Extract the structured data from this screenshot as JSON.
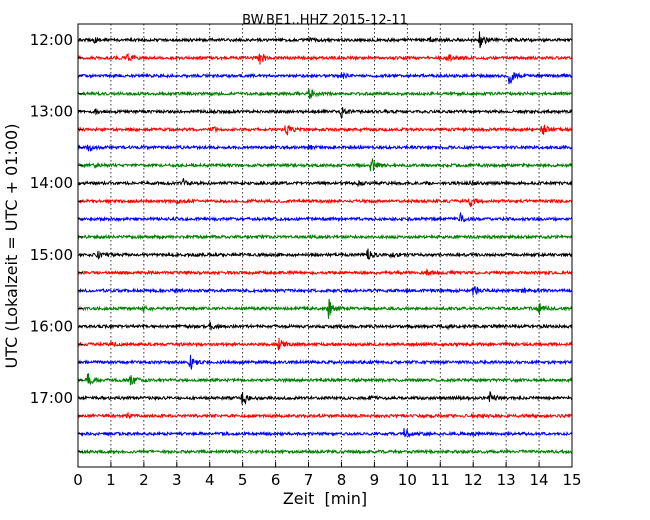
{
  "chart_data": {
    "type": "line",
    "title": "BW.BE1..HHZ 2015-12-11",
    "xlabel": "Zeit  [min]",
    "ylabel": "UTC (Lokalzeit = UTC + 01:00)",
    "xlim": [
      0,
      15
    ],
    "x_ticks": [
      "0",
      "1",
      "2",
      "3",
      "4",
      "5",
      "6",
      "7",
      "8",
      "9",
      "10",
      "11",
      "12",
      "13",
      "14",
      "15"
    ],
    "y_ticks": [
      "12:00",
      "13:00",
      "14:00",
      "15:00",
      "16:00",
      "17:00"
    ],
    "grid": "vertical dotted lines at each minute",
    "color_cycle": [
      "#000000",
      "#ff0000",
      "#0000ff",
      "#008000"
    ],
    "traces": [
      {
        "start": "12:00",
        "events": [
          [
            12.2,
            9
          ],
          [
            0.5,
            2
          ],
          [
            7.0,
            1.5
          ],
          [
            10.7,
            2
          ],
          [
            13.2,
            2
          ]
        ]
      },
      {
        "start": "12:15",
        "events": [
          [
            5.5,
            10
          ],
          [
            1.5,
            3
          ],
          [
            11.2,
            4
          ],
          [
            11.6,
            2
          ]
        ]
      },
      {
        "start": "12:30",
        "events": [
          [
            13.1,
            10
          ],
          [
            8.0,
            3
          ]
        ]
      },
      {
        "start": "12:45",
        "events": [
          [
            7.0,
            6
          ]
        ]
      },
      {
        "start": "13:00",
        "events": [
          [
            8.0,
            7
          ],
          [
            0.5,
            2
          ]
        ]
      },
      {
        "start": "13:15",
        "events": [
          [
            6.3,
            8
          ],
          [
            14.1,
            8
          ],
          [
            4.1,
            3
          ]
        ]
      },
      {
        "start": "13:30",
        "events": [
          [
            0.3,
            4
          ],
          [
            7.0,
            2
          ]
        ]
      },
      {
        "start": "13:45",
        "events": [
          [
            8.9,
            8
          ],
          [
            0.5,
            2
          ]
        ]
      },
      {
        "start": "14:00",
        "events": [
          [
            3.2,
            4
          ],
          [
            8.5,
            2
          ],
          [
            11.8,
            2
          ]
        ]
      },
      {
        "start": "14:15",
        "events": [
          [
            11.9,
            8
          ],
          [
            3.0,
            2
          ]
        ]
      },
      {
        "start": "14:30",
        "events": [
          [
            11.6,
            6
          ]
        ]
      },
      {
        "start": "14:45",
        "events": []
      },
      {
        "start": "15:00",
        "events": [
          [
            8.8,
            6
          ],
          [
            0.6,
            3
          ],
          [
            9.5,
            2
          ]
        ]
      },
      {
        "start": "15:15",
        "events": [
          [
            10.6,
            2
          ]
        ]
      },
      {
        "start": "15:30",
        "events": [
          [
            12.0,
            7
          ],
          [
            13.5,
            2
          ]
        ]
      },
      {
        "start": "15:45",
        "events": [
          [
            7.6,
            10
          ],
          [
            14.0,
            6
          ],
          [
            2.0,
            2
          ]
        ]
      },
      {
        "start": "16:00",
        "events": [
          [
            4.0,
            4
          ],
          [
            11.2,
            2
          ]
        ]
      },
      {
        "start": "16:15",
        "events": [
          [
            6.1,
            6
          ],
          [
            1.0,
            2
          ]
        ]
      },
      {
        "start": "16:30",
        "events": [
          [
            3.4,
            8
          ]
        ]
      },
      {
        "start": "16:45",
        "events": [
          [
            0.3,
            7
          ],
          [
            1.6,
            7
          ]
        ]
      },
      {
        "start": "17:00",
        "events": [
          [
            5.0,
            9
          ],
          [
            12.5,
            6
          ],
          [
            8.8,
            2
          ]
        ]
      },
      {
        "start": "17:15",
        "events": [
          [
            1.5,
            2
          ]
        ]
      },
      {
        "start": "17:30",
        "events": [
          [
            9.9,
            7
          ],
          [
            12.0,
            2
          ]
        ]
      },
      {
        "start": "17:45",
        "events": []
      }
    ]
  }
}
